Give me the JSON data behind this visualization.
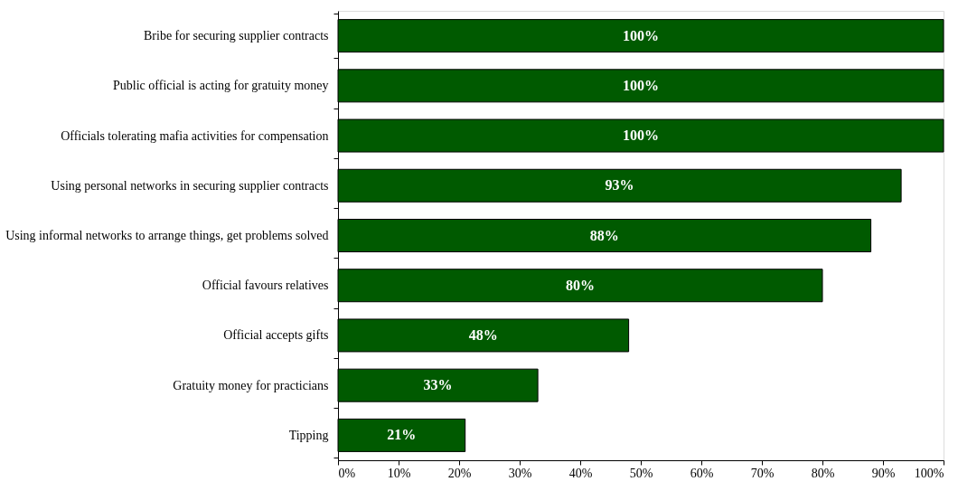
{
  "chart_data": {
    "type": "bar",
    "orientation": "horizontal",
    "categories": [
      "Bribe for securing supplier contracts",
      "Public official is acting for gratuity money",
      "Officials tolerating mafia activities for compensation",
      "Using personal networks in securing supplier contracts",
      "Using informal networks to arrange things, get problems solved",
      "Official favours relatives",
      "Official accepts gifts",
      "Gratuity money for practicians",
      "Tipping"
    ],
    "values": [
      100,
      100,
      100,
      93,
      88,
      80,
      48,
      33,
      21
    ],
    "color": "#005a00",
    "value_labels": [
      "100%",
      "100%",
      "100%",
      "93%",
      "88%",
      "80%",
      "48%",
      "33%",
      "21%"
    ],
    "xlim": [
      0,
      100
    ],
    "xticks": [
      {
        "value": 0,
        "label": "0%"
      },
      {
        "value": 10,
        "label": "10%"
      },
      {
        "value": 20,
        "label": "20%"
      },
      {
        "value": 30,
        "label": "30%"
      },
      {
        "value": 40,
        "label": "40%"
      },
      {
        "value": 50,
        "label": "50%"
      },
      {
        "value": 60,
        "label": "60%"
      },
      {
        "value": 70,
        "label": "70%"
      },
      {
        "value": 80,
        "label": "80%"
      },
      {
        "value": 90,
        "label": "90%"
      },
      {
        "value": 100,
        "label": "100%"
      }
    ],
    "grid": false
  }
}
